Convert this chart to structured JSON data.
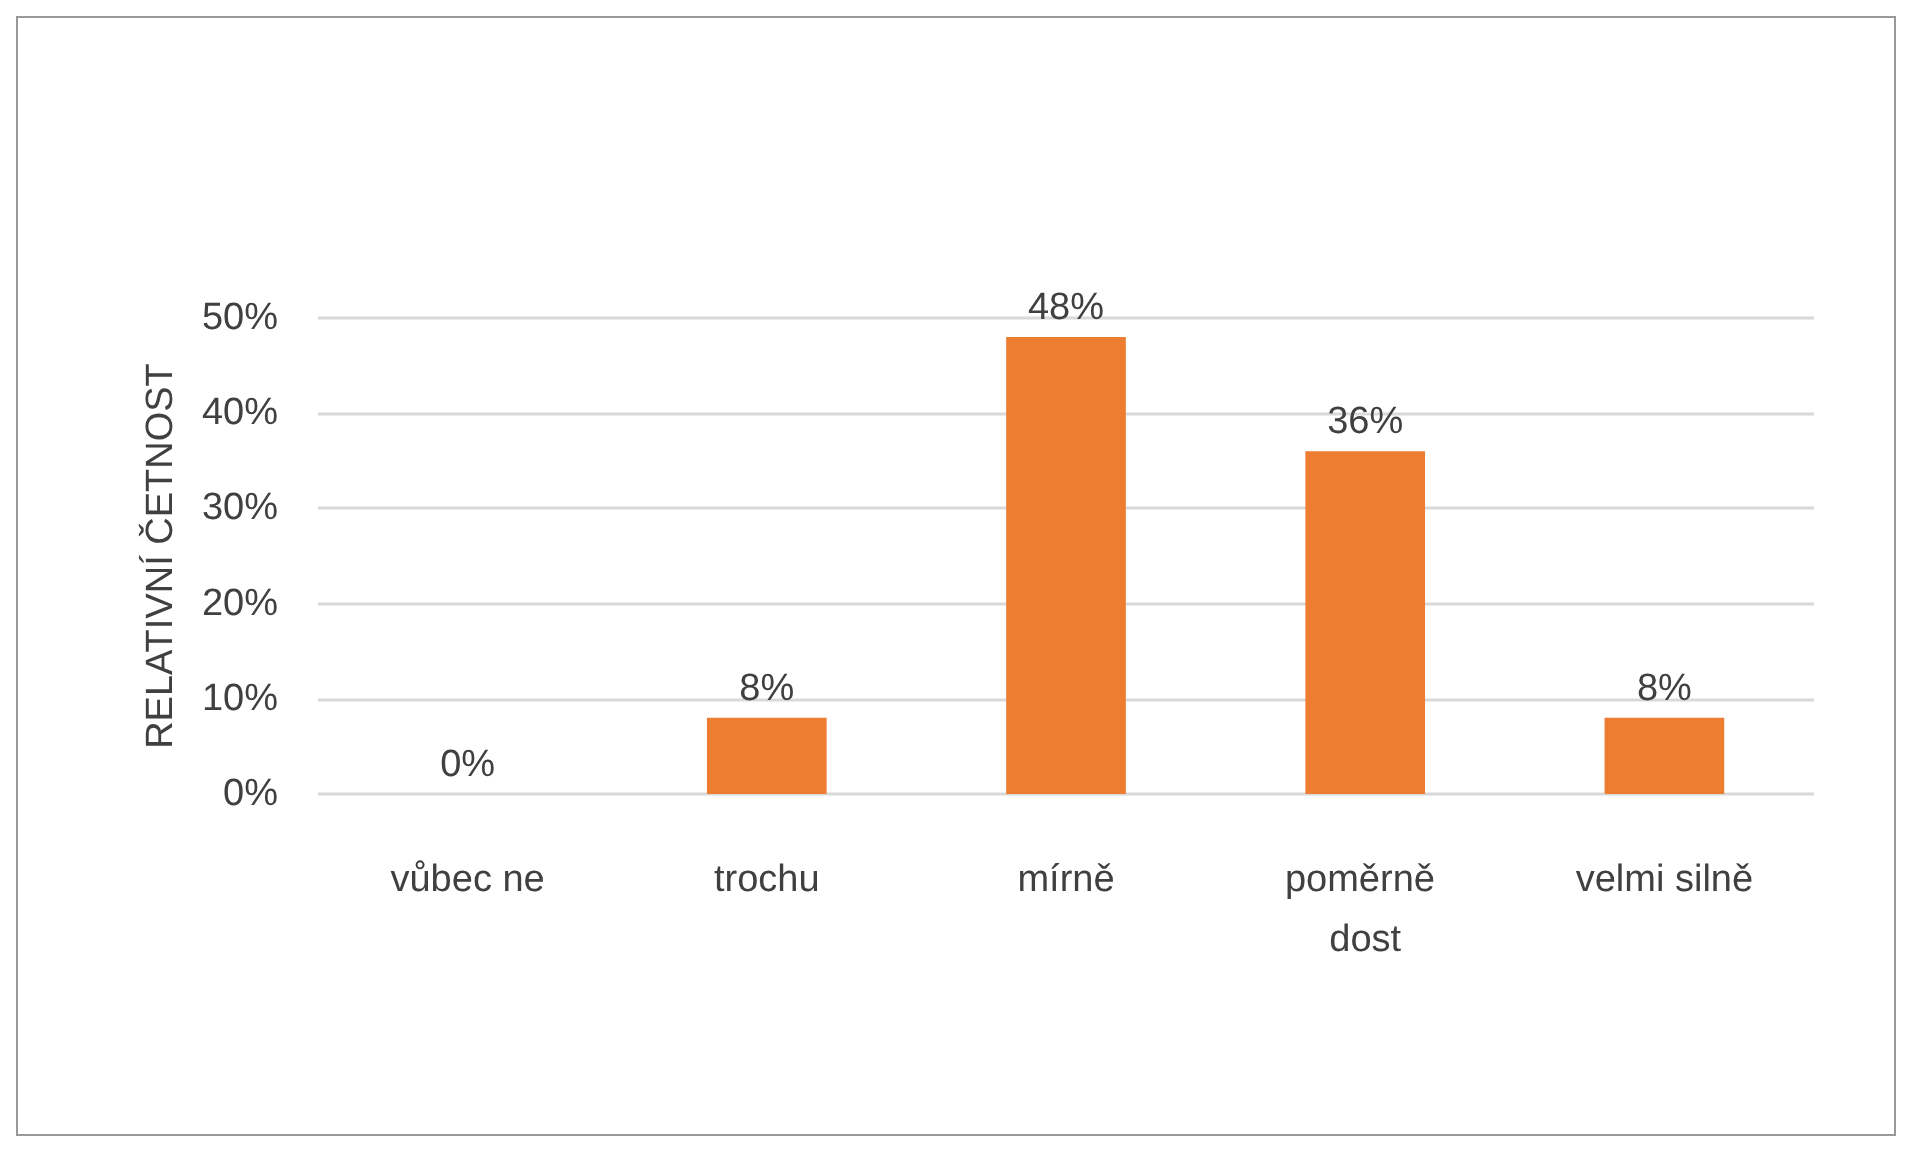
{
  "chart_data": {
    "type": "bar",
    "ylabel": "RELATIVNÍ ČETNOST",
    "categories": [
      "vůbec ne",
      "trochu",
      "mírně",
      "poměrně dost",
      "velmi silně"
    ],
    "values": [
      0,
      8,
      48,
      36,
      8
    ],
    "value_labels": [
      "0%",
      "8%",
      "48%",
      "36%",
      "8%"
    ],
    "color": "#ed7d31",
    "ylim": [
      0,
      50
    ],
    "yticks": [
      {
        "value": 0,
        "label": "0%"
      },
      {
        "value": 10,
        "label": "10%"
      },
      {
        "value": 20,
        "label": "20%"
      },
      {
        "value": 30,
        "label": "30%"
      },
      {
        "value": 40,
        "label": "40%"
      },
      {
        "value": 50,
        "label": "50%"
      }
    ],
    "grid": "y"
  }
}
